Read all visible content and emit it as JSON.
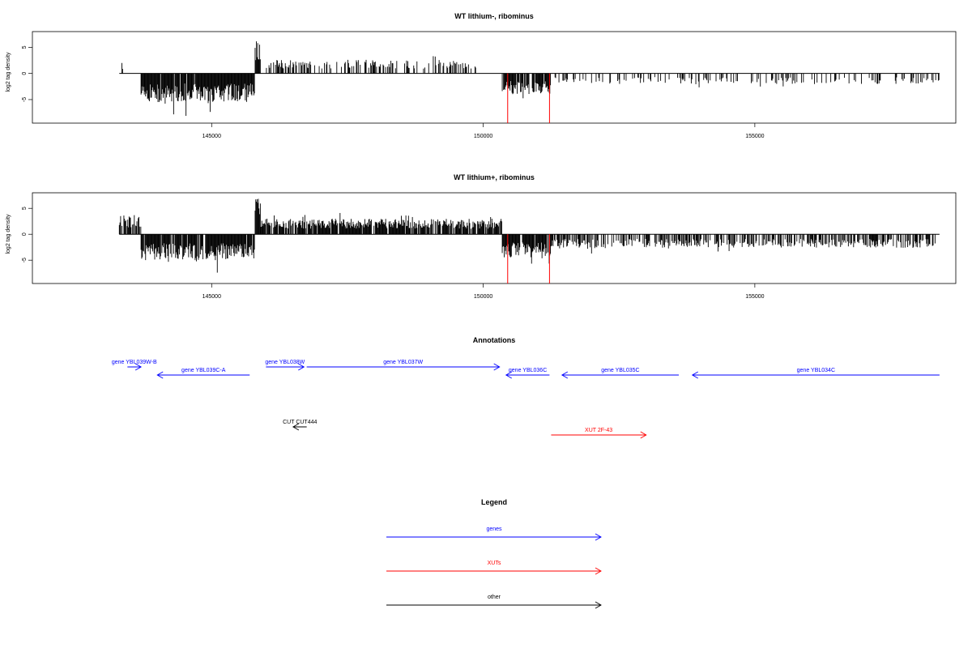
{
  "colors": {
    "gene": "#0000ff",
    "xut": "#ff0000",
    "other": "#000000",
    "bar": "#000000"
  },
  "chart_data": [
    {
      "type": "bar",
      "title": "WT lithium-, ribominus",
      "ylabel": "log2 tag density",
      "xlim": [
        141700,
        158700
      ],
      "ylim": [
        -9.5,
        8
      ],
      "xticks": [
        145000,
        150000,
        155000
      ],
      "yticks": [
        -5,
        0,
        5
      ],
      "xticklabels": [
        "145000",
        "150000",
        "155000"
      ],
      "yticklabels": [
        "-5",
        "0",
        "5"
      ],
      "data_range": [
        143300,
        158400
      ],
      "seed": 7,
      "highlight_lines": [
        150450,
        151220
      ],
      "segments": [
        {
          "x": [
            143300,
            143700
          ],
          "sign": 1,
          "amp": 2.2,
          "density": 0.08
        },
        {
          "x": [
            143700,
            145800
          ],
          "sign": -1,
          "amp": 5.5,
          "density": 0.95
        },
        {
          "x": [
            145800,
            145900
          ],
          "sign": 1,
          "amp": 6.2,
          "density": 1.0
        },
        {
          "x": [
            145900,
            149950
          ],
          "sign": 1,
          "amp": 2.6,
          "density": 0.35
        },
        {
          "x": [
            149950,
            150350
          ],
          "sign": 1,
          "amp": 1.0,
          "density": 0.05
        },
        {
          "x": [
            150350,
            151250
          ],
          "sign": -1,
          "amp": 4.0,
          "density": 0.9
        },
        {
          "x": [
            151250,
            158400
          ],
          "sign": -1,
          "amp": 2.0,
          "density": 0.22
        }
      ]
    },
    {
      "type": "bar",
      "title": "WT lithium+, ribominus",
      "ylabel": "log2 tag density",
      "xlim": [
        141700,
        158700
      ],
      "ylim": [
        -9.5,
        8
      ],
      "xticks": [
        145000,
        150000,
        155000
      ],
      "yticks": [
        -5,
        0,
        5
      ],
      "xticklabels": [
        "145000",
        "150000",
        "155000"
      ],
      "yticklabels": [
        "-5",
        "0",
        "5"
      ],
      "data_range": [
        143300,
        158400
      ],
      "seed": 21,
      "highlight_lines": [
        150450,
        151220
      ],
      "segments": [
        {
          "x": [
            143300,
            143700
          ],
          "sign": 1,
          "amp": 3.8,
          "density": 0.7
        },
        {
          "x": [
            143700,
            145800
          ],
          "sign": -1,
          "amp": 5.0,
          "density": 0.95
        },
        {
          "x": [
            145800,
            145900
          ],
          "sign": 1,
          "amp": 7.0,
          "density": 1.0
        },
        {
          "x": [
            145900,
            150350
          ],
          "sign": 1,
          "amp": 3.0,
          "density": 0.9
        },
        {
          "x": [
            150350,
            151250
          ],
          "sign": -1,
          "amp": 4.5,
          "density": 0.95
        },
        {
          "x": [
            151250,
            158400
          ],
          "sign": -1,
          "amp": 2.6,
          "density": 0.55
        }
      ]
    }
  ],
  "annotations": {
    "title": "Annotations",
    "items": [
      {
        "label": "gene YBL039W-B",
        "type": "gene",
        "start": 143450,
        "end": 143700,
        "dir": 1,
        "row": 0
      },
      {
        "label": "gene YBL039C-A",
        "type": "gene",
        "start": 144000,
        "end": 145700,
        "dir": -1,
        "row": 1
      },
      {
        "label": "gene YBL038W",
        "type": "gene",
        "start": 146000,
        "end": 146700,
        "dir": 1,
        "row": 0
      },
      {
        "label": "gene YBL037W",
        "type": "gene",
        "start": 146750,
        "end": 150300,
        "dir": 1,
        "row": 0
      },
      {
        "label": "gene YBL036C",
        "type": "gene",
        "start": 150420,
        "end": 151220,
        "dir": -1,
        "row": 1
      },
      {
        "label": "gene YBL035C",
        "type": "gene",
        "start": 151450,
        "end": 153600,
        "dir": -1,
        "row": 1
      },
      {
        "label": "gene YBL034C",
        "type": "gene",
        "start": 153850,
        "end": 158400,
        "dir": -1,
        "row": 1
      },
      {
        "label": "CUT CUT444",
        "type": "other",
        "start": 146500,
        "end": 146750,
        "dir": -1,
        "row": 2
      },
      {
        "label": "XUT 2F-43",
        "type": "xut",
        "start": 151250,
        "end": 153000,
        "dir": 1,
        "row": 3
      }
    ]
  },
  "legend": {
    "title": "Legend",
    "items": [
      {
        "label": "genes",
        "type": "gene"
      },
      {
        "label": "XUTs",
        "type": "xut"
      },
      {
        "label": "other",
        "type": "other"
      }
    ]
  }
}
